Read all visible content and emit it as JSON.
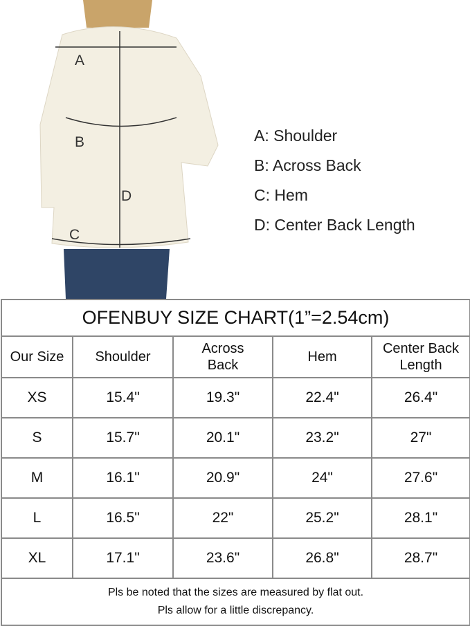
{
  "figure": {
    "labels": [
      "A",
      "B",
      "C",
      "D"
    ]
  },
  "legend": [
    "A: Shoulder",
    "B: Across Back",
    "C: Hem",
    "D: Center Back Length"
  ],
  "table": {
    "title": "OFENBUY SIZE CHART(1”=2.54cm)",
    "headers": [
      "Our Size",
      "Shoulder",
      "Across Back",
      "Hem",
      "Center Back Length"
    ],
    "rows": [
      [
        "XS",
        "15.4\"",
        "19.3\"",
        "22.4\"",
        "26.4\""
      ],
      [
        "S",
        "15.7\"",
        "20.1\"",
        "23.2\"",
        "27\""
      ],
      [
        "M",
        "16.1\"",
        "20.9\"",
        "24\"",
        "27.6\""
      ],
      [
        "L",
        "16.5\"",
        "22\"",
        "25.2\"",
        "28.1\""
      ],
      [
        "XL",
        "17.1\"",
        "23.6\"",
        "26.8\"",
        "28.7\""
      ]
    ],
    "note": [
      "Pls be noted that the sizes are measured by flat out.",
      "Pls allow for a little discrepancy."
    ]
  },
  "colors": {
    "jacket": "#f3efe2",
    "jeans": "#2f4566",
    "hair": "#c9a46a",
    "border": "#8a8a8a"
  }
}
